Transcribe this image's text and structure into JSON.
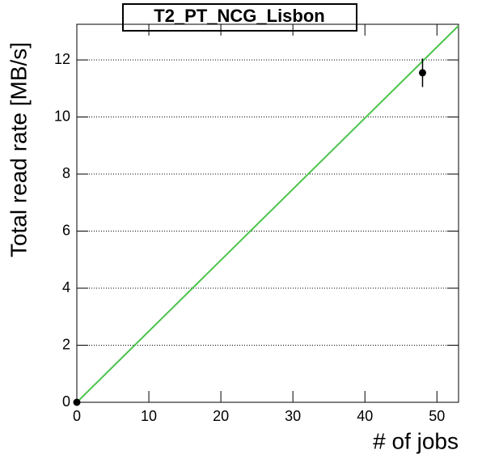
{
  "chart_data": {
    "type": "scatter",
    "title": "T2_PT_NCG_Lisbon",
    "x_label": "# of jobs",
    "y_label": "Total read rate [MB/s]",
    "xlim": [
      0,
      53
    ],
    "ylim": [
      0,
      13.25
    ],
    "xticks": [
      0,
      10,
      20,
      30,
      40,
      50
    ],
    "yticks": [
      0,
      2,
      4,
      6,
      8,
      10,
      12
    ],
    "grid": true,
    "series": [
      {
        "color": "#000000",
        "x": [
          0,
          48
        ],
        "values": [
          0,
          11.55
        ],
        "errors": [
          0,
          0.5
        ]
      }
    ],
    "fit": {
      "color": "#4cc44c",
      "x": [
        0,
        53
      ],
      "values": [
        0,
        13.2
      ]
    }
  }
}
